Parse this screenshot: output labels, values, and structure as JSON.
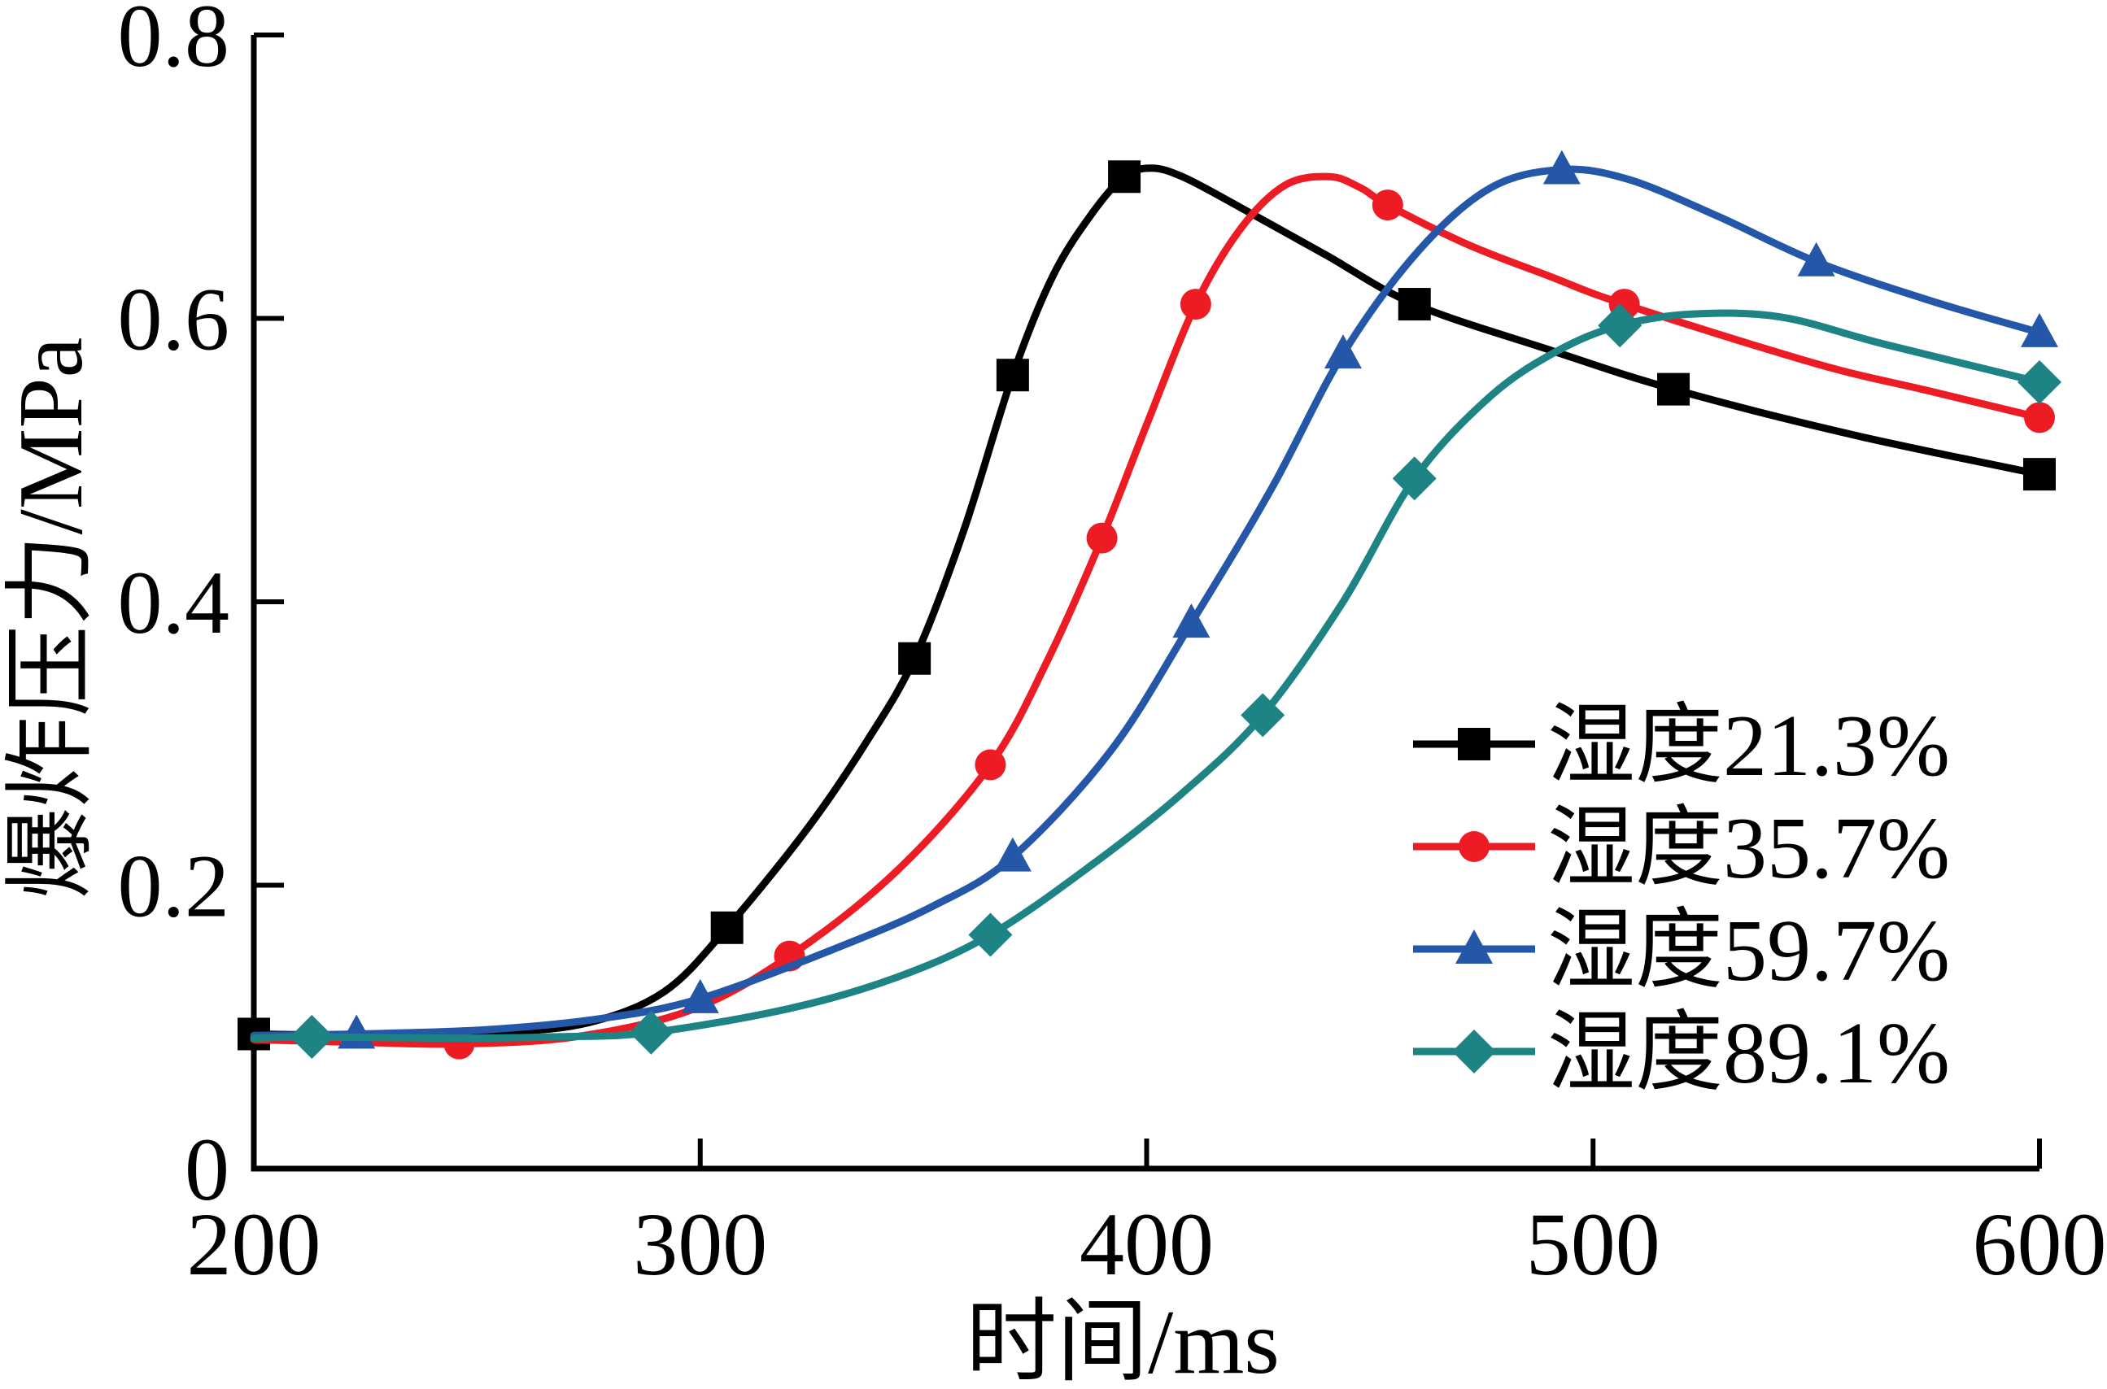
{
  "figure": {
    "background": "#ffffff",
    "axis_color": "#000000"
  },
  "chart_data": {
    "type": "line",
    "title": "",
    "xlabel": "时间/ms",
    "ylabel": "爆炸压力/MPa",
    "xlim": [
      200,
      600
    ],
    "ylim": [
      0,
      0.8
    ],
    "x_ticks": [
      200,
      300,
      400,
      500,
      600
    ],
    "x_tick_labels": [
      "200",
      "300",
      "400",
      "500",
      "600"
    ],
    "y_ticks": [
      0,
      0.2,
      0.4,
      0.6,
      0.8
    ],
    "y_tick_labels": [
      "0",
      "0.2",
      "0.4",
      "0.6",
      "0.8"
    ],
    "grid": false,
    "legend_position": "lower right",
    "series": [
      {
        "name": "湿度21.3%",
        "color": "#000000",
        "marker": "square",
        "points": [
          [
            200,
            0.095
          ],
          [
            306,
            0.17
          ],
          [
            348,
            0.36
          ],
          [
            370,
            0.56
          ],
          [
            395,
            0.7
          ],
          [
            460,
            0.61
          ],
          [
            518,
            0.55
          ],
          [
            600,
            0.49
          ]
        ],
        "curve": [
          [
            200,
            0.095
          ],
          [
            230,
            0.094
          ],
          [
            255,
            0.096
          ],
          [
            275,
            0.103
          ],
          [
            292,
            0.125
          ],
          [
            306,
            0.17
          ],
          [
            324,
            0.24
          ],
          [
            337,
            0.3
          ],
          [
            348,
            0.36
          ],
          [
            359,
            0.45
          ],
          [
            370,
            0.56
          ],
          [
            379,
            0.63
          ],
          [
            388,
            0.675
          ],
          [
            395,
            0.7
          ],
          [
            401,
            0.706
          ],
          [
            408,
            0.7
          ],
          [
            420,
            0.68
          ],
          [
            440,
            0.645
          ],
          [
            460,
            0.61
          ],
          [
            490,
            0.578
          ],
          [
            518,
            0.55
          ],
          [
            558,
            0.518
          ],
          [
            600,
            0.49
          ]
        ]
      },
      {
        "name": "湿度35.7%",
        "color": "#ed1c24",
        "marker": "circle",
        "points": [
          [
            246,
            0.088
          ],
          [
            320,
            0.15
          ],
          [
            365,
            0.285
          ],
          [
            390,
            0.445
          ],
          [
            411,
            0.61
          ],
          [
            454,
            0.68
          ],
          [
            507,
            0.61
          ],
          [
            600,
            0.53
          ]
        ],
        "curve": [
          [
            200,
            0.091
          ],
          [
            225,
            0.089
          ],
          [
            246,
            0.088
          ],
          [
            272,
            0.093
          ],
          [
            298,
            0.112
          ],
          [
            320,
            0.15
          ],
          [
            344,
            0.21
          ],
          [
            365,
            0.285
          ],
          [
            378,
            0.36
          ],
          [
            390,
            0.445
          ],
          [
            400,
            0.525
          ],
          [
            411,
            0.61
          ],
          [
            421,
            0.663
          ],
          [
            431,
            0.694
          ],
          [
            441,
            0.7
          ],
          [
            448,
            0.692
          ],
          [
            454,
            0.68
          ],
          [
            472,
            0.652
          ],
          [
            490,
            0.63
          ],
          [
            507,
            0.61
          ],
          [
            550,
            0.568
          ],
          [
            575,
            0.549
          ],
          [
            600,
            0.53
          ]
        ]
      },
      {
        "name": "湿度59.7%",
        "color": "#2457a7",
        "marker": "triangle",
        "points": [
          [
            223,
            0.095
          ],
          [
            300,
            0.12
          ],
          [
            370,
            0.22
          ],
          [
            410,
            0.385
          ],
          [
            444,
            0.575
          ],
          [
            493,
            0.705
          ],
          [
            550,
            0.64
          ],
          [
            600,
            0.59
          ]
        ],
        "curve": [
          [
            200,
            0.094
          ],
          [
            223,
            0.095
          ],
          [
            252,
            0.098
          ],
          [
            278,
            0.106
          ],
          [
            300,
            0.12
          ],
          [
            330,
            0.155
          ],
          [
            352,
            0.185
          ],
          [
            370,
            0.22
          ],
          [
            392,
            0.295
          ],
          [
            410,
            0.385
          ],
          [
            428,
            0.48
          ],
          [
            444,
            0.575
          ],
          [
            461,
            0.648
          ],
          [
            477,
            0.692
          ],
          [
            493,
            0.705
          ],
          [
            508,
            0.698
          ],
          [
            528,
            0.672
          ],
          [
            550,
            0.64
          ],
          [
            575,
            0.613
          ],
          [
            600,
            0.59
          ]
        ]
      },
      {
        "name": "湿度89.1%",
        "color": "#1e8384",
        "marker": "diamond",
        "points": [
          [
            213,
            0.093
          ],
          [
            289,
            0.096
          ],
          [
            365,
            0.165
          ],
          [
            426,
            0.32
          ],
          [
            460,
            0.487
          ],
          [
            506,
            0.595
          ],
          [
            600,
            0.555
          ]
        ],
        "curve": [
          [
            200,
            0.092
          ],
          [
            213,
            0.093
          ],
          [
            245,
            0.092
          ],
          [
            268,
            0.093
          ],
          [
            289,
            0.096
          ],
          [
            320,
            0.113
          ],
          [
            344,
            0.135
          ],
          [
            365,
            0.165
          ],
          [
            388,
            0.215
          ],
          [
            408,
            0.265
          ],
          [
            426,
            0.32
          ],
          [
            444,
            0.4
          ],
          [
            460,
            0.487
          ],
          [
            477,
            0.545
          ],
          [
            492,
            0.577
          ],
          [
            506,
            0.595
          ],
          [
            522,
            0.603
          ],
          [
            542,
            0.601
          ],
          [
            565,
            0.582
          ],
          [
            600,
            0.555
          ]
        ]
      }
    ]
  }
}
